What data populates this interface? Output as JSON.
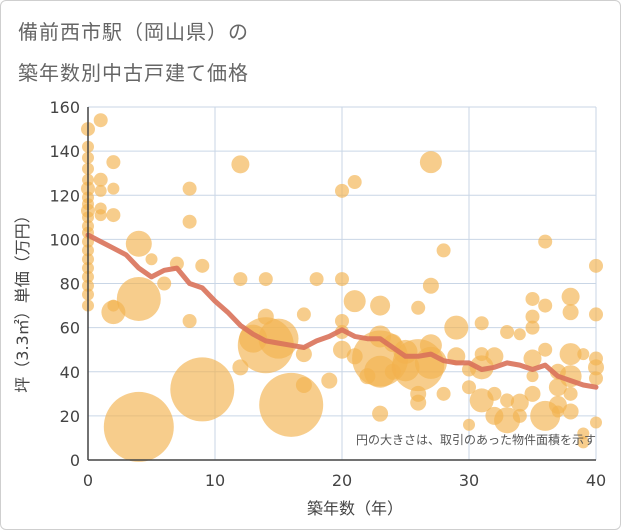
{
  "title_line1": "備前西市駅（岡山県）の",
  "title_line2": "築年数別中古戸建て価格",
  "note": "円の大きさは、取引のあった物件面積を示す",
  "colors": {
    "bubble": "#f3b24e",
    "line": "#d9725a",
    "grid": "#c9d6e6",
    "axis": "#444444"
  },
  "chart_data": {
    "type": "scatter",
    "xlabel": "築年数（年）",
    "ylabel": "坪（3.3㎡）単価（万円）",
    "xlim": [
      0,
      40
    ],
    "ylim": [
      0,
      160
    ],
    "xticks": [
      "0",
      "10",
      "20",
      "30",
      "40"
    ],
    "yticks": [
      "0",
      "20",
      "40",
      "60",
      "80",
      "100",
      "120",
      "140",
      "160"
    ],
    "grid": true,
    "trend": {
      "x": [
        0,
        1,
        2,
        3,
        4,
        5,
        6,
        7,
        8,
        9,
        10,
        11,
        12,
        13,
        14,
        15,
        16,
        17,
        18,
        19,
        20,
        21,
        22,
        23,
        24,
        25,
        26,
        27,
        28,
        29,
        30,
        31,
        32,
        33,
        34,
        35,
        36,
        37,
        38,
        39,
        40
      ],
      "y": [
        102,
        99,
        96,
        93,
        87,
        83,
        86,
        87,
        80,
        78,
        72,
        67,
        61,
        57,
        54,
        53,
        52,
        51,
        54,
        56,
        59,
        56,
        55,
        55,
        51,
        47,
        47,
        48,
        45,
        44,
        44,
        41,
        42,
        44,
        43,
        41,
        43,
        38,
        36,
        34,
        33
      ]
    },
    "points": [
      [
        0,
        150,
        7
      ],
      [
        0,
        142,
        6
      ],
      [
        0,
        137,
        6
      ],
      [
        0,
        132,
        6
      ],
      [
        0,
        127,
        6
      ],
      [
        0,
        123,
        7
      ],
      [
        0,
        119,
        6
      ],
      [
        0,
        116,
        6
      ],
      [
        0,
        113,
        7
      ],
      [
        0,
        110,
        6
      ],
      [
        0,
        106,
        6
      ],
      [
        0,
        103,
        6
      ],
      [
        0,
        99,
        6
      ],
      [
        0,
        95,
        6
      ],
      [
        0,
        91,
        6
      ],
      [
        0,
        87,
        6
      ],
      [
        0,
        83,
        6
      ],
      [
        0,
        79,
        6
      ],
      [
        0,
        75,
        6
      ],
      [
        0,
        70,
        6
      ],
      [
        1,
        154,
        7
      ],
      [
        1,
        127,
        7
      ],
      [
        1,
        122,
        6
      ],
      [
        1,
        114,
        6
      ],
      [
        1,
        111,
        6
      ],
      [
        2,
        135,
        7
      ],
      [
        2,
        123,
        6
      ],
      [
        2,
        111,
        7
      ],
      [
        2,
        70,
        6
      ],
      [
        2,
        67,
        12
      ],
      [
        4,
        98,
        13
      ],
      [
        4,
        73,
        22
      ],
      [
        4,
        15,
        35
      ],
      [
        5,
        91,
        6
      ],
      [
        6,
        80,
        7
      ],
      [
        7,
        89,
        7
      ],
      [
        8,
        123,
        7
      ],
      [
        8,
        108,
        7
      ],
      [
        8,
        63,
        7
      ],
      [
        9,
        88,
        7
      ],
      [
        9,
        32,
        32
      ],
      [
        12,
        134,
        9
      ],
      [
        12,
        82,
        7
      ],
      [
        12,
        42,
        8
      ],
      [
        13,
        55,
        14
      ],
      [
        14,
        82,
        7
      ],
      [
        14,
        65,
        8
      ],
      [
        14,
        52,
        28
      ],
      [
        15,
        55,
        20
      ],
      [
        16,
        25,
        32
      ],
      [
        17,
        66,
        7
      ],
      [
        17,
        48,
        8
      ],
      [
        17,
        34,
        8
      ],
      [
        18,
        82,
        7
      ],
      [
        19,
        36,
        8
      ],
      [
        20,
        122,
        7
      ],
      [
        20,
        82,
        7
      ],
      [
        20,
        63,
        7
      ],
      [
        20,
        58,
        7
      ],
      [
        20,
        50,
        9
      ],
      [
        21,
        126,
        7
      ],
      [
        21,
        72,
        11
      ],
      [
        21,
        47,
        8
      ],
      [
        22,
        38,
        8
      ],
      [
        23,
        70,
        10
      ],
      [
        23,
        56,
        11
      ],
      [
        23,
        46,
        28
      ],
      [
        23,
        40,
        16
      ],
      [
        23,
        21,
        8
      ],
      [
        24,
        53,
        9
      ],
      [
        24,
        40,
        8
      ],
      [
        25,
        49,
        12
      ],
      [
        25,
        42,
        14
      ],
      [
        26,
        69,
        7
      ],
      [
        26,
        43,
        26
      ],
      [
        26,
        30,
        8
      ],
      [
        26,
        26,
        8
      ],
      [
        27,
        135,
        11
      ],
      [
        27,
        79,
        8
      ],
      [
        27,
        52,
        11
      ],
      [
        27,
        44,
        16
      ],
      [
        28,
        95,
        7
      ],
      [
        28,
        30,
        7
      ],
      [
        29,
        60,
        12
      ],
      [
        29,
        47,
        9
      ],
      [
        30,
        41,
        7
      ],
      [
        30,
        33,
        7
      ],
      [
        30,
        16,
        6
      ],
      [
        31,
        62,
        7
      ],
      [
        31,
        48,
        7
      ],
      [
        31,
        42,
        12
      ],
      [
        31,
        27,
        12
      ],
      [
        32,
        47,
        9
      ],
      [
        32,
        30,
        7
      ],
      [
        32,
        20,
        9
      ],
      [
        33,
        58,
        7
      ],
      [
        33,
        27,
        7
      ],
      [
        33,
        18,
        13
      ],
      [
        34,
        57,
        6
      ],
      [
        34,
        26,
        9
      ],
      [
        34,
        20,
        7
      ],
      [
        35,
        73,
        7
      ],
      [
        35,
        65,
        7
      ],
      [
        35,
        60,
        7
      ],
      [
        35,
        46,
        9
      ],
      [
        35,
        38,
        6
      ],
      [
        35,
        30,
        8
      ],
      [
        36,
        99,
        7
      ],
      [
        36,
        70,
        7
      ],
      [
        36,
        50,
        7
      ],
      [
        36,
        20,
        15
      ],
      [
        37,
        40,
        8
      ],
      [
        37,
        33,
        9
      ],
      [
        37,
        25,
        9
      ],
      [
        37,
        22,
        6
      ],
      [
        38,
        74,
        9
      ],
      [
        38,
        67,
        8
      ],
      [
        38,
        48,
        11
      ],
      [
        38,
        38,
        11
      ],
      [
        38,
        30,
        7
      ],
      [
        38,
        22,
        8
      ],
      [
        39,
        48,
        6
      ],
      [
        39,
        12,
        6
      ],
      [
        39,
        8,
        6
      ],
      [
        40,
        88,
        7
      ],
      [
        40,
        66,
        7
      ],
      [
        40,
        46,
        7
      ],
      [
        40,
        42,
        8
      ],
      [
        40,
        37,
        7
      ],
      [
        40,
        17,
        6
      ]
    ]
  }
}
